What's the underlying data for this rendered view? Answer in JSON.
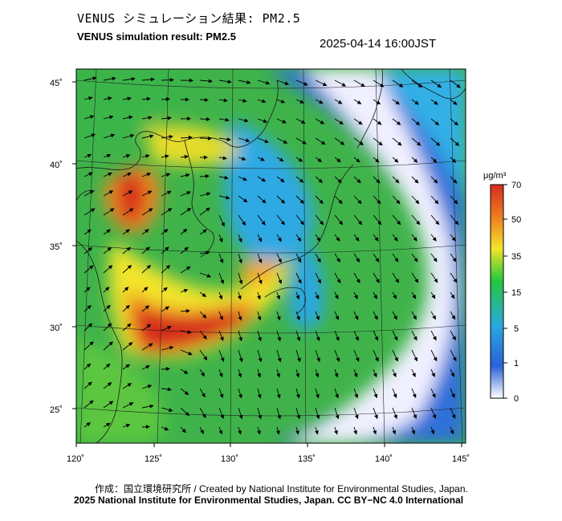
{
  "header": {
    "title_jp": "VENUS シミュレーション結果: PM2.5",
    "title_en": "VENUS simulation result: PM2.5",
    "timestamp": "2025-04-14 16:00JST"
  },
  "map": {
    "lon_range": [
      120,
      145
    ],
    "lat_range": [
      23,
      46
    ],
    "lon_ticks": [
      "120˚",
      "125˚",
      "130˚",
      "135˚",
      "140˚",
      "145˚"
    ],
    "lat_ticks": [
      "45˚",
      "40˚",
      "35˚",
      "30˚",
      "25˚"
    ],
    "graticule": true,
    "wind_arrows": true
  },
  "colorbar": {
    "unit": "μg/m³",
    "ticks": [
      "70",
      "50",
      "35",
      "15",
      "5",
      "1",
      "0"
    ],
    "colors": [
      "#d62a1e",
      "#f08a20",
      "#f2e52a",
      "#23c83c",
      "#2aa7e0",
      "#2a62d8",
      "#ffffff"
    ]
  },
  "footer": {
    "credit_line1": "作成：国立環境研究所 / Created by National Institute for Environmental Studies, Japan.",
    "credit_line2": "2025 National Institute for Environmental Studies, Japan. CC BY−NC 4.0 International"
  }
}
